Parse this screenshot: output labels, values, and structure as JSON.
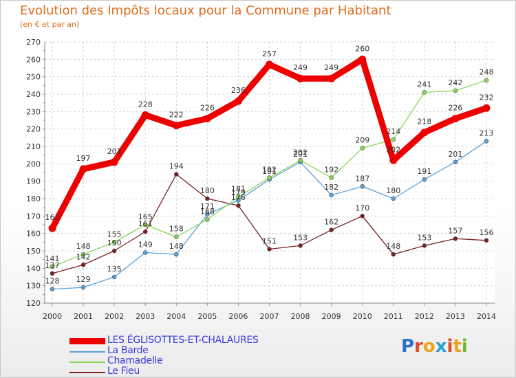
{
  "chart_data": {
    "type": "line",
    "title": "Evolution des Impôts locaux pour la Commune par Habitant",
    "subtitle": "(en € et par an)",
    "xlabel": "",
    "ylabel": "",
    "ylim": [
      120,
      270
    ],
    "ytick_step": 10,
    "grid": true,
    "legend_position": "bottom-left",
    "x": [
      "2000",
      "2001",
      "2002",
      "2003",
      "2004",
      "2005",
      "2006",
      "2007",
      "2008",
      "2009",
      "2010",
      "2011",
      "2012",
      "2013",
      "2014"
    ],
    "series": [
      {
        "name": "LES ÉGLISOTTES-ET-CHALAURES",
        "color": "#ee0000",
        "values": [
          163,
          197,
          201,
          228,
          222,
          226,
          236,
          257,
          249,
          249,
          260,
          202,
          218,
          226,
          232
        ]
      },
      {
        "name": "La Barde",
        "color": "#5aa0d8",
        "values": [
          128,
          129,
          135,
          149,
          148,
          171,
          179,
          191,
          201,
          182,
          187,
          180,
          191,
          201,
          213
        ]
      },
      {
        "name": "Chamadelle",
        "color": "#88d855",
        "values": [
          141,
          148,
          155,
          165,
          158,
          168,
          181,
          192,
          202,
          192,
          209,
          214,
          241,
          242,
          248
        ]
      },
      {
        "name": "Le Fieu",
        "color": "#7a2020",
        "values": [
          137,
          142,
          150,
          161,
          194,
          180,
          176,
          151,
          153,
          162,
          170,
          148,
          153,
          157,
          156
        ]
      }
    ]
  },
  "brand": {
    "letters": [
      "P",
      "r",
      "o",
      "x",
      "i",
      "t",
      "i"
    ],
    "colors": [
      "#2f6fd0",
      "#e04b2a",
      "#f0a020",
      "#2aa0d0",
      "#e04b2a",
      "#f0a020",
      "#70b830"
    ]
  }
}
